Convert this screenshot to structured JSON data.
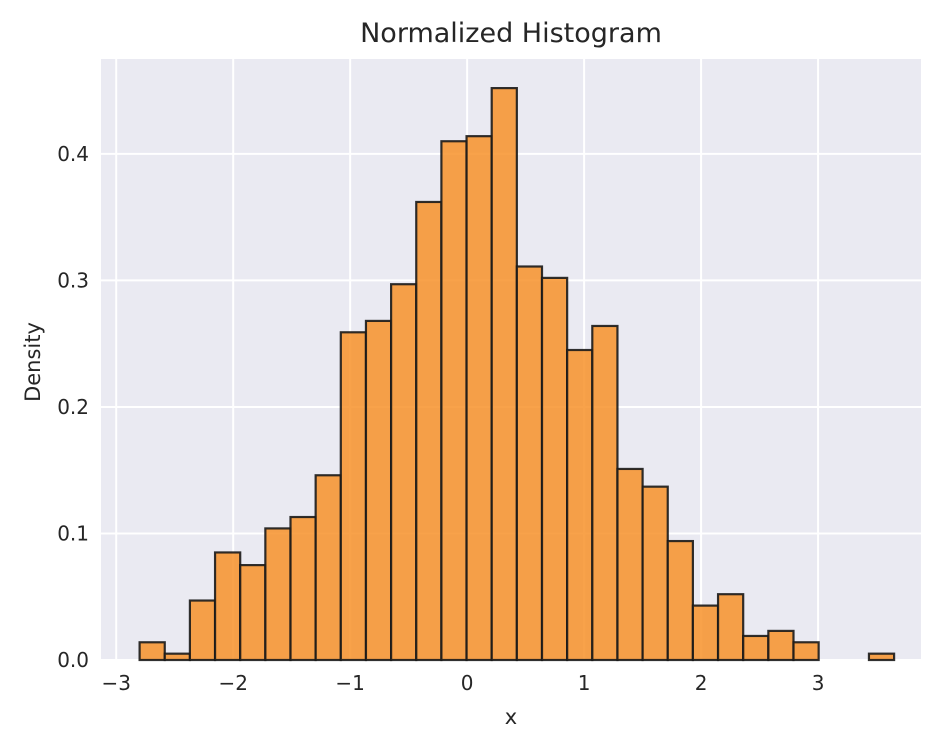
{
  "chart_data": {
    "type": "bar",
    "title": "Normalized Histogram",
    "xlabel": "x",
    "ylabel": "Density",
    "xlim": [
      -3.13,
      3.88
    ],
    "ylim": [
      0,
      0.475
    ],
    "x_ticks": [
      -3,
      -2,
      -1,
      0,
      1,
      2,
      3
    ],
    "x_tick_labels": [
      "−3",
      "−2",
      "−1",
      "0",
      "1",
      "2",
      "3"
    ],
    "y_ticks": [
      0.0,
      0.1,
      0.2,
      0.3,
      0.4
    ],
    "y_tick_labels": [
      "0.0",
      "0.1",
      "0.2",
      "0.3",
      "0.4"
    ],
    "grid": true,
    "legend": false,
    "bar_color": "#f7922a",
    "edge_color": "#1a1a1a",
    "background_color": "#eaeaf2",
    "bin_edges": [
      -2.8,
      -2.585,
      -2.37,
      -2.155,
      -1.94,
      -1.725,
      -1.51,
      -1.295,
      -1.08,
      -0.865,
      -0.65,
      -0.435,
      -0.22,
      -0.005,
      0.21,
      0.425,
      0.64,
      0.855,
      1.07,
      1.285,
      1.5,
      1.715,
      1.93,
      2.145,
      2.36,
      2.575,
      2.79,
      3.005,
      3.22,
      3.435,
      3.65
    ],
    "values": [
      0.014,
      0.005,
      0.047,
      0.085,
      0.075,
      0.104,
      0.113,
      0.146,
      0.259,
      0.268,
      0.297,
      0.362,
      0.41,
      0.414,
      0.452,
      0.311,
      0.302,
      0.245,
      0.264,
      0.151,
      0.137,
      0.094,
      0.043,
      0.052,
      0.019,
      0.023,
      0.014,
      0,
      0,
      0.005
    ]
  }
}
